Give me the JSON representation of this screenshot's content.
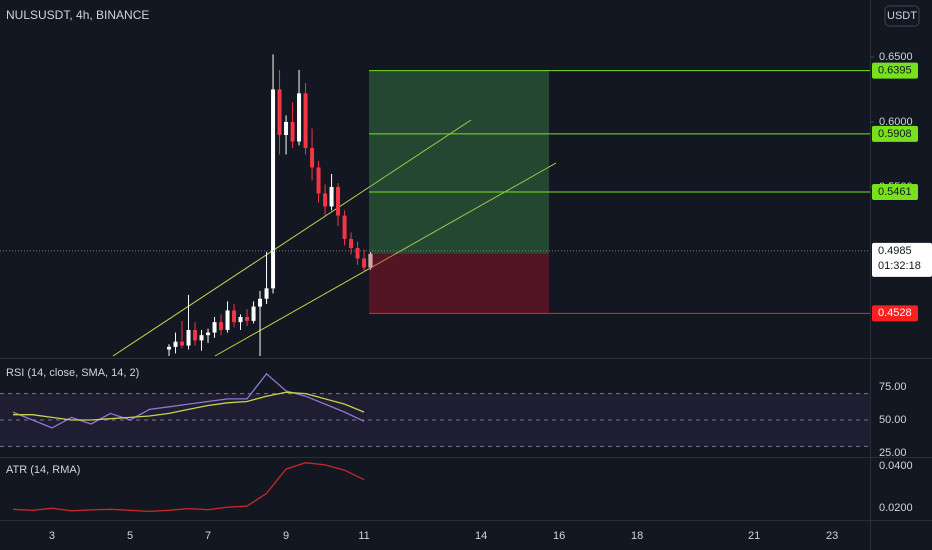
{
  "header": {
    "title": "NULSUSDT, 4h, BINANCE",
    "currency": "USDT"
  },
  "chart_data": [
    {
      "type": "candlestick",
      "x": [
        6.0,
        6.167,
        6.333,
        6.5,
        6.667,
        6.833,
        7.0,
        7.167,
        7.333,
        7.5,
        7.667,
        7.833,
        8.0,
        8.167,
        8.333,
        8.5,
        8.667,
        8.833,
        9.0,
        9.167,
        9.333,
        9.5,
        9.667,
        9.833,
        10.0,
        10.167,
        10.333,
        10.5,
        10.667,
        10.833,
        11.0,
        11.167
      ],
      "open": [
        0.425,
        0.427,
        0.431,
        0.428,
        0.44,
        0.432,
        0.436,
        0.438,
        0.446,
        0.44,
        0.455,
        0.446,
        0.45,
        0.447,
        0.458,
        0.464,
        0.472,
        0.625,
        0.59,
        0.6,
        0.585,
        0.622,
        0.58,
        0.565,
        0.545,
        0.535,
        0.55,
        0.528,
        0.51,
        0.503,
        0.495,
        0.488
      ],
      "high": [
        0.429,
        0.438,
        0.447,
        0.467,
        0.446,
        0.44,
        0.441,
        0.45,
        0.452,
        0.462,
        0.46,
        0.452,
        0.456,
        0.462,
        0.47,
        0.5,
        0.652,
        0.64,
        0.605,
        0.615,
        0.64,
        0.63,
        0.595,
        0.57,
        0.552,
        0.56,
        0.553,
        0.532,
        0.515,
        0.508,
        0.502,
        0.5
      ],
      "low": [
        0.42,
        0.422,
        0.426,
        0.425,
        0.428,
        0.424,
        0.43,
        0.434,
        0.436,
        0.438,
        0.442,
        0.44,
        0.443,
        0.445,
        0.42,
        0.46,
        0.468,
        0.575,
        0.575,
        0.58,
        0.582,
        0.575,
        0.555,
        0.538,
        0.528,
        0.532,
        0.52,
        0.505,
        0.498,
        0.49,
        0.485,
        0.486
      ],
      "close": [
        0.427,
        0.431,
        0.428,
        0.44,
        0.432,
        0.436,
        0.438,
        0.446,
        0.44,
        0.455,
        0.446,
        0.45,
        0.447,
        0.458,
        0.464,
        0.472,
        0.625,
        0.59,
        0.6,
        0.585,
        0.622,
        0.58,
        0.565,
        0.545,
        0.535,
        0.55,
        0.528,
        0.51,
        0.503,
        0.495,
        0.488,
        0.4985
      ],
      "up_color": "#ffffff",
      "down_color": "#f23645",
      "xlim": [
        1.667,
        23.97
      ],
      "xticks": [
        3,
        5,
        7,
        9,
        11,
        14,
        16,
        18,
        21,
        23
      ],
      "ylim": [
        0.4192,
        0.6938
      ],
      "yticks": [
        {
          "value": 0.65,
          "label": "0.6500"
        },
        {
          "value": 0.6,
          "label": "0.6000"
        },
        {
          "value": 0.55,
          "label": "0.5500"
        }
      ],
      "targets": [
        0.6395,
        0.5908,
        0.5461
      ],
      "target_color": "#76e21b",
      "entry": 0.4985,
      "countdown": "01:32:18",
      "stop": 0.4528,
      "stop_color": "#ff1f1f"
    },
    {
      "type": "line",
      "title": "RSI (14, close, SMA, 14, 2)",
      "x": [
        2,
        2.5,
        3,
        3.5,
        4,
        4.5,
        5,
        5.5,
        6,
        6.5,
        7,
        7.5,
        8,
        8.5,
        9,
        9.5,
        10,
        10.5,
        11
      ],
      "series": [
        {
          "color": "#9575cd",
          "values": [
            56,
            50,
            44,
            52,
            47,
            55,
            50,
            58,
            60,
            62,
            64,
            66,
            66,
            85,
            72,
            68,
            62,
            56,
            49
          ]
        },
        {
          "color": "#c9d24a",
          "values": [
            54,
            54,
            52,
            50,
            50,
            51,
            52,
            53,
            55,
            58,
            61,
            63,
            64,
            68,
            71,
            70,
            66,
            62,
            56
          ]
        }
      ],
      "ylim": [
        23.5,
        93.9
      ],
      "yticks": [
        {
          "value": 75,
          "label": "75.00"
        },
        {
          "value": 50,
          "label": "50.00"
        },
        {
          "value": 25,
          "label": "25.00"
        }
      ],
      "bands": [
        70,
        30
      ]
    },
    {
      "type": "line",
      "title": "ATR (14, RMA)",
      "x": [
        2,
        2.5,
        3,
        3.5,
        4,
        4.5,
        5,
        5.5,
        6,
        6.5,
        7,
        7.5,
        8,
        8.5,
        9,
        9.5,
        10,
        10.5,
        11
      ],
      "series": [
        {
          "color": "#c62828",
          "values": [
            0.0195,
            0.019,
            0.02,
            0.0188,
            0.0192,
            0.0195,
            0.019,
            0.0185,
            0.019,
            0.0198,
            0.0193,
            0.0205,
            0.021,
            0.027,
            0.0385,
            0.0415,
            0.0405,
            0.038,
            0.0335
          ]
        }
      ],
      "ylim": [
        0.0149,
        0.0428
      ],
      "yticks": [
        {
          "value": 0.04,
          "label": "0.0400"
        },
        {
          "value": 0.02,
          "label": "0.0200"
        }
      ]
    }
  ]
}
